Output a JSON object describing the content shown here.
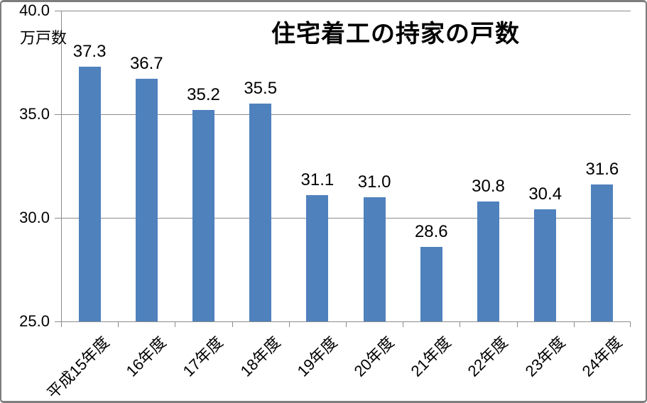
{
  "title": "住宅着工の持家の戸数",
  "chart_data": {
    "type": "bar",
    "title": "住宅着工の持家の戸数",
    "ylabel": "万戸数",
    "xlabel": "",
    "categories": [
      "平成15年度",
      "16年度",
      "17年度",
      "18年度",
      "19年度",
      "20年度",
      "21年度",
      "22年度",
      "23年度",
      "24年度"
    ],
    "values": [
      37.3,
      36.7,
      35.2,
      35.5,
      31.1,
      31.0,
      28.6,
      30.8,
      30.4,
      31.6
    ],
    "data_labels": [
      "37.3",
      "36.7",
      "35.2",
      "35.5",
      "31.1",
      "31.0",
      "28.6",
      "30.8",
      "30.4",
      "31.6"
    ],
    "ylim": [
      25.0,
      40.0
    ],
    "ytick_interval": 5.0,
    "ytick_labels": [
      "40.0",
      "35.0",
      "30.0",
      "25.0"
    ],
    "grid": true,
    "legend": "none",
    "colors": {
      "bar_fill": "#4F81BD",
      "gridline": "#8C8C8C",
      "axis_line": "#8C8C8C",
      "text": "#000000",
      "frame_border": "#7D7D7D",
      "background": "#FFFFFF"
    }
  }
}
